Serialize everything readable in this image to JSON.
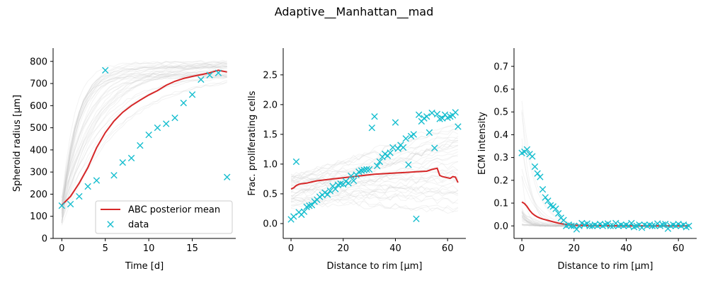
{
  "figure": {
    "suptitle": "Adaptive__Manhattan__mad"
  },
  "colors": {
    "mean_line": "#d62728",
    "data_marker": "#17becf",
    "ensemble": "#c8c8c8"
  },
  "chart_data": [
    {
      "type": "line",
      "xlabel": "Time [d]",
      "ylabel": "Spheroid radius [μm]",
      "xlim": [
        -1.0,
        20.0
      ],
      "ylim": [
        0,
        860
      ],
      "xticks": [
        0,
        5,
        10,
        15
      ],
      "yticks": [
        0,
        100,
        200,
        300,
        400,
        500,
        600,
        700,
        800
      ],
      "grid": false,
      "legend": {
        "placement": "lower-right",
        "entries": [
          "ABC posterior mean",
          "data"
        ]
      },
      "series": [
        {
          "name": "ABC posterior mean",
          "style": "line",
          "x": [
            0,
            1,
            2,
            3,
            4,
            5,
            6,
            7,
            8,
            9,
            10,
            11,
            12,
            13,
            14,
            15,
            16,
            17,
            18,
            19
          ],
          "y": [
            150,
            190,
            250,
            320,
            410,
            478,
            530,
            570,
            600,
            625,
            648,
            668,
            692,
            710,
            723,
            732,
            740,
            748,
            760,
            752
          ]
        },
        {
          "name": "data",
          "style": "markers",
          "marker": "x",
          "x": [
            0,
            1,
            2,
            3,
            4,
            5,
            6,
            7,
            8,
            9,
            10,
            11,
            12,
            13,
            14,
            15,
            16,
            17,
            18,
            19
          ],
          "y": [
            148,
            155,
            190,
            235,
            262,
            760,
            285,
            343,
            363,
            420,
            468,
            500,
            518,
            545,
            612,
            650,
            718,
            738,
            748,
            277
          ]
        }
      ],
      "ensemble": {
        "description": "posterior sample trajectories",
        "count": 40
      }
    },
    {
      "type": "line",
      "xlabel": "Distance to rim [μm]",
      "ylabel": "Frac. proliferating cells",
      "xlim": [
        -3.0,
        67.0
      ],
      "ylim": [
        -0.25,
        2.95
      ],
      "xticks": [
        0,
        20,
        40,
        60
      ],
      "yticks": [
        0.0,
        0.5,
        1.0,
        1.5,
        2.0,
        2.5
      ],
      "grid": false,
      "series": [
        {
          "name": "",
          "style": "line",
          "x": [
            0,
            1,
            2,
            3,
            4,
            6,
            8,
            10,
            12,
            14,
            16,
            18,
            20,
            24,
            28,
            32,
            36,
            40,
            44,
            48,
            52,
            54,
            55,
            56,
            57,
            58,
            60,
            61,
            62,
            63,
            64
          ],
          "y": [
            0.58,
            0.6,
            0.64,
            0.66,
            0.67,
            0.68,
            0.7,
            0.72,
            0.73,
            0.74,
            0.75,
            0.76,
            0.77,
            0.79,
            0.81,
            0.83,
            0.84,
            0.85,
            0.86,
            0.87,
            0.88,
            0.91,
            0.92,
            0.93,
            0.81,
            0.79,
            0.77,
            0.76,
            0.79,
            0.78,
            0.69
          ]
        },
        {
          "name": "data",
          "style": "markers",
          "marker": "x",
          "x": [
            0,
            1,
            2,
            3,
            4,
            5,
            6,
            7,
            8,
            9,
            10,
            11,
            12,
            13,
            14,
            15,
            16,
            17,
            18,
            19,
            20,
            21,
            22,
            23,
            24,
            25,
            26,
            27,
            28,
            29,
            30,
            31,
            32,
            33,
            34,
            35,
            36,
            37,
            38,
            39,
            40,
            41,
            42,
            43,
            44,
            45,
            46,
            47,
            48,
            49,
            50,
            51,
            52,
            53,
            54,
            55,
            56,
            57,
            58,
            59,
            60,
            61,
            62,
            63,
            64
          ],
          "y": [
            0.07,
            0.12,
            1.04,
            0.19,
            0.15,
            0.2,
            0.28,
            0.3,
            0.31,
            0.37,
            0.4,
            0.45,
            0.48,
            0.52,
            0.49,
            0.55,
            0.63,
            0.58,
            0.65,
            0.67,
            0.66,
            0.71,
            0.68,
            0.8,
            0.72,
            0.82,
            0.87,
            0.89,
            0.9,
            0.91,
            0.91,
            1.61,
            1.8,
            0.97,
            1.04,
            1.12,
            1.17,
            1.14,
            1.19,
            1.28,
            1.7,
            1.26,
            1.32,
            1.28,
            1.43,
            0.99,
            1.47,
            1.5,
            0.08,
            1.83,
            1.72,
            1.77,
            1.8,
            1.53,
            1.86,
            1.27,
            1.84,
            1.76,
            1.77,
            1.83,
            1.78,
            1.8,
            1.82,
            1.87,
            1.63
          ]
        }
      ],
      "ensemble": {
        "description": "posterior sample trajectories",
        "count": 40
      }
    },
    {
      "type": "line",
      "xlabel": "Distance to rim [μm]",
      "ylabel": "ECM intensity",
      "xlim": [
        -3.0,
        67.0
      ],
      "ylim": [
        -0.055,
        0.78
      ],
      "xticks": [
        0,
        20,
        40,
        60
      ],
      "yticks": [
        0.0,
        0.1,
        0.2,
        0.3,
        0.4,
        0.5,
        0.6,
        0.7
      ],
      "grid": false,
      "series": [
        {
          "name": "",
          "style": "line",
          "x": [
            0,
            1,
            2,
            3,
            4,
            5,
            6,
            7,
            8,
            10,
            12,
            14,
            16,
            18,
            20,
            24,
            30,
            40,
            50,
            60,
            64
          ],
          "y": [
            0.105,
            0.098,
            0.085,
            0.068,
            0.055,
            0.046,
            0.039,
            0.034,
            0.03,
            0.024,
            0.018,
            0.012,
            0.008,
            0.005,
            0.003,
            0.002,
            0.001,
            0.0,
            0.0,
            0.0,
            0.0
          ]
        },
        {
          "name": "data",
          "style": "markers",
          "marker": "x",
          "x": [
            0,
            1,
            2,
            3,
            4,
            5,
            6,
            7,
            8,
            9,
            10,
            11,
            12,
            13,
            14,
            15,
            16,
            17,
            18,
            19,
            20,
            21,
            22,
            23,
            24,
            25,
            26,
            27,
            28,
            29,
            30,
            31,
            32,
            33,
            34,
            35,
            36,
            37,
            38,
            39,
            40,
            41,
            42,
            43,
            44,
            45,
            46,
            47,
            48,
            49,
            50,
            51,
            52,
            53,
            54,
            55,
            56,
            57,
            58,
            59,
            60,
            61,
            62,
            63,
            64
          ],
          "y": [
            0.32,
            0.325,
            0.335,
            0.315,
            0.305,
            0.26,
            0.23,
            0.215,
            0.16,
            0.125,
            0.11,
            0.09,
            0.085,
            0.075,
            0.055,
            0.035,
            0.025,
            0.0,
            0.005,
            0.0,
            0.0,
            -0.015,
            0.0,
            0.012,
            0.005,
            0.01,
            0.0,
            0.0,
            0.005,
            0.0,
            0.008,
            0.0,
            0.005,
            0.01,
            0.0,
            0.0,
            0.012,
            0.0,
            0.005,
            0.0,
            0.005,
            0.0,
            0.012,
            -0.005,
            0.0,
            0.005,
            -0.008,
            0.005,
            0.0,
            0.005,
            0.0,
            0.0,
            0.01,
            0.0,
            0.005,
            0.008,
            -0.012,
            0.0,
            0.005,
            0.0,
            0.008,
            0.0,
            0.005,
            -0.005,
            0.0
          ]
        }
      ],
      "ensemble": {
        "description": "posterior sample trajectories",
        "count": 40
      }
    }
  ]
}
